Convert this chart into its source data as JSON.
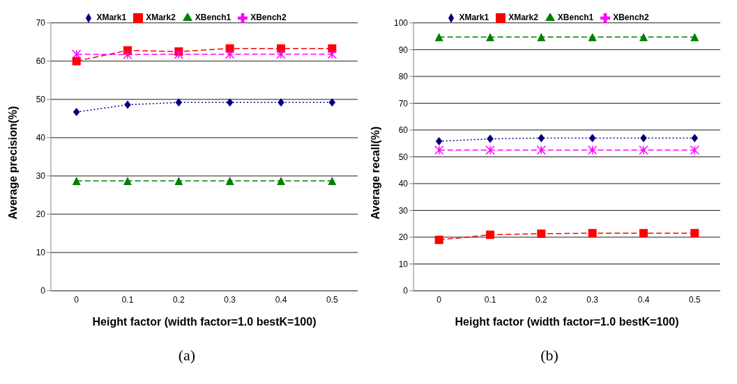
{
  "chart_data": [
    {
      "type": "line",
      "xlabel": "Height factor (width factor=1.0 bestK=100)",
      "ylabel": "Average precision(%)",
      "categories": [
        "0",
        "0.1",
        "0.2",
        "0.3",
        "0.4",
        "0.5"
      ],
      "ylim": [
        0,
        70
      ],
      "yticks": [
        0,
        10,
        20,
        30,
        40,
        50,
        60,
        70
      ],
      "grid": "y",
      "legend": "top",
      "annotations": [
        "(a)"
      ],
      "series": [
        {
          "name": "XMark1",
          "color": "#000080",
          "marker": "diamond",
          "line_style": "dotted",
          "values": [
            46.7,
            48.6,
            49.2,
            49.2,
            49.2,
            49.2
          ]
        },
        {
          "name": "XMark2",
          "color": "#ff0000",
          "marker": "square",
          "line_style": "dashed",
          "values": [
            60,
            62.8,
            62.5,
            63.3,
            63.3,
            63.3
          ]
        },
        {
          "name": "XBench1",
          "color": "#008000",
          "marker": "triangle",
          "line_style": "dashed",
          "values": [
            28.7,
            28.7,
            28.7,
            28.7,
            28.7,
            28.7
          ]
        },
        {
          "name": "XBench2",
          "color": "#ff00ff",
          "marker": "cross",
          "line_style": "dashed",
          "values": [
            61.8,
            61.7,
            61.8,
            61.8,
            61.8,
            61.8
          ]
        }
      ]
    },
    {
      "type": "line",
      "xlabel": "Height factor (width factor=1.0 bestK=100)",
      "ylabel": "Average recall(%)",
      "categories": [
        "0",
        "0.1",
        "0.2",
        "0.3",
        "0.4",
        "0.5"
      ],
      "ylim": [
        0,
        100
      ],
      "yticks": [
        0,
        10,
        20,
        30,
        40,
        50,
        60,
        70,
        80,
        90,
        100
      ],
      "grid": "y",
      "legend": "top",
      "annotations": [
        "(b)"
      ],
      "series": [
        {
          "name": "XMark1",
          "color": "#000080",
          "marker": "diamond",
          "line_style": "dotted",
          "values": [
            55.8,
            56.7,
            57,
            57,
            57,
            57
          ]
        },
        {
          "name": "XMark2",
          "color": "#ff0000",
          "marker": "square",
          "line_style": "dashed",
          "values": [
            19,
            20.9,
            21.3,
            21.5,
            21.5,
            21.5
          ]
        },
        {
          "name": "XBench1",
          "color": "#008000",
          "marker": "triangle",
          "line_style": "dashed",
          "values": [
            94.7,
            94.7,
            94.7,
            94.7,
            94.7,
            94.7
          ]
        },
        {
          "name": "XBench2",
          "color": "#ff00ff",
          "marker": "cross",
          "line_style": "dashed",
          "values": [
            52.5,
            52.5,
            52.5,
            52.5,
            52.5,
            52.5
          ]
        }
      ]
    }
  ]
}
